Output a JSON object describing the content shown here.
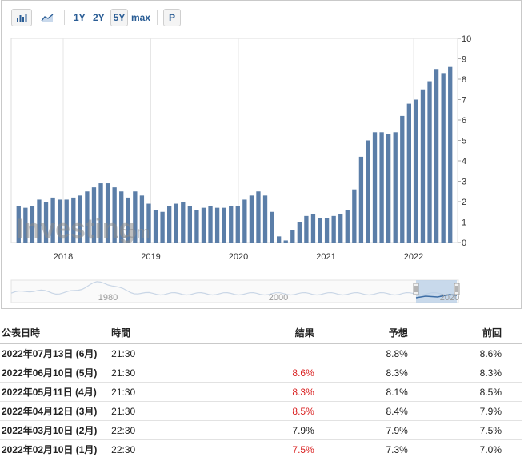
{
  "toolbar": {
    "buttons": [
      "1Y",
      "2Y",
      "5Y",
      "max"
    ],
    "active": "5Y",
    "extra": "P",
    "icons": [
      "bar-chart-icon",
      "area-chart-icon"
    ]
  },
  "watermark": {
    "brand": "Investing",
    "suffix": ".com"
  },
  "chart_data": {
    "type": "bar",
    "title": "",
    "x_tick_labels": [
      "2018",
      "2019",
      "2020",
      "2021",
      "2022"
    ],
    "y_tick_labels": [
      "0",
      "1",
      "2",
      "3",
      "4",
      "5",
      "6",
      "7",
      "8",
      "9",
      "10"
    ],
    "ylim": [
      0,
      10
    ],
    "grid": "vertical",
    "y_axis_side": "right",
    "bar_color": "#5b7ea8",
    "series": [
      {
        "values": [
          1.8,
          1.7,
          1.8,
          2.1,
          2.0,
          2.2,
          2.1,
          2.1,
          2.2,
          2.3,
          2.5,
          2.7,
          2.9,
          2.9,
          2.7,
          2.5,
          2.2,
          2.5,
          2.3,
          1.9,
          1.6,
          1.5,
          1.8,
          1.9,
          2.0,
          1.8,
          1.6,
          1.7,
          1.8,
          1.7,
          1.7,
          1.8,
          1.8,
          2.1,
          2.3,
          2.5,
          2.3,
          1.5,
          0.3,
          0.1,
          0.6,
          1.0,
          1.3,
          1.4,
          1.2,
          1.2,
          1.3,
          1.4,
          1.6,
          2.6,
          4.2,
          5.0,
          5.4,
          5.4,
          5.3,
          5.4,
          6.2,
          6.8,
          7.0,
          7.5,
          7.9,
          8.5,
          8.3,
          8.6
        ]
      }
    ],
    "navigator": {
      "tick_labels": [
        "1980",
        "2000",
        "2020"
      ],
      "series_color": "#c9d6e6",
      "selection_color": "#b7cde6"
    }
  },
  "table": {
    "headers": {
      "date": "公表日時",
      "time": "時間",
      "actual": "結果",
      "forecast": "予想",
      "previous": "前回"
    },
    "rows": [
      {
        "date": "2022年07月13日 (6月)",
        "time": "21:30",
        "actual": "",
        "forecast": "8.8%",
        "previous": "8.6%",
        "actual_color": ""
      },
      {
        "date": "2022年06月10日 (5月)",
        "time": "21:30",
        "actual": "8.6%",
        "forecast": "8.3%",
        "previous": "8.3%",
        "actual_color": "red"
      },
      {
        "date": "2022年05月11日 (4月)",
        "time": "21:30",
        "actual": "8.3%",
        "forecast": "8.1%",
        "previous": "8.5%",
        "actual_color": "red"
      },
      {
        "date": "2022年04月12日 (3月)",
        "time": "21:30",
        "actual": "8.5%",
        "forecast": "8.4%",
        "previous": "7.9%",
        "actual_color": "red"
      },
      {
        "date": "2022年03月10日 (2月)",
        "time": "22:30",
        "actual": "7.9%",
        "forecast": "7.9%",
        "previous": "7.5%",
        "actual_color": ""
      },
      {
        "date": "2022年02月10日 (1月)",
        "time": "22:30",
        "actual": "7.5%",
        "forecast": "7.3%",
        "previous": "7.0%",
        "actual_color": "red"
      }
    ]
  }
}
